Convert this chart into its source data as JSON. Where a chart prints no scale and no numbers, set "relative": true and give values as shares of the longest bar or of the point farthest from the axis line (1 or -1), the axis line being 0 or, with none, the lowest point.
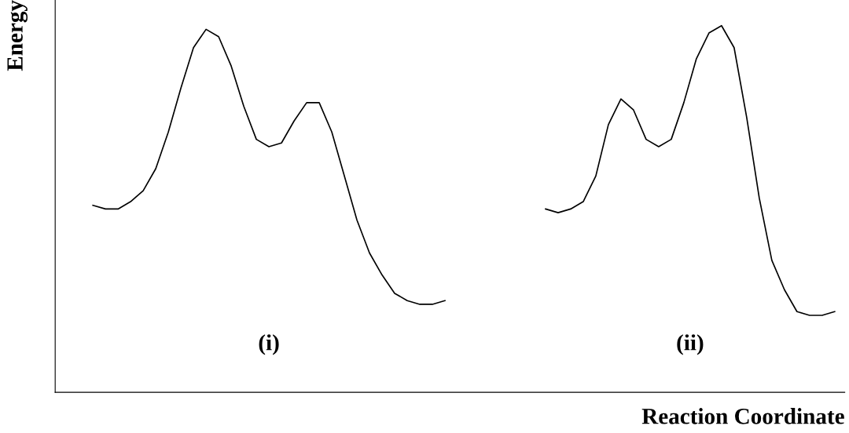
{
  "chart_data": {
    "type": "line",
    "relative": true,
    "xlabel": "Reaction Coordinate",
    "ylabel": "Energy",
    "categories": [
      null,
      null,
      null,
      null,
      null,
      null,
      null,
      null,
      null,
      null,
      null,
      null,
      null,
      null,
      null,
      null,
      null,
      null,
      null,
      null,
      null,
      null,
      null,
      null,
      null,
      null,
      null,
      null,
      null,
      null,
      null,
      null,
      null,
      null,
      null,
      null,
      null,
      null,
      null,
      null,
      null,
      null,
      null,
      null,
      null,
      null,
      null,
      null,
      null,
      null,
      null,
      null,
      null,
      null,
      null,
      null,
      null,
      null,
      null,
      null
    ],
    "series": [
      {
        "color": "#000000",
        "values": [
          0.51,
          0.5,
          0.5,
          0.52,
          0.55,
          0.61,
          0.71,
          0.83,
          0.94,
          0.99,
          0.97,
          0.89,
          0.78,
          0.69,
          0.67,
          0.68,
          0.74,
          0.79,
          0.79,
          0.71,
          0.59,
          0.47,
          0.38,
          0.32,
          0.27,
          0.25,
          0.24,
          0.24,
          0.25,
          null,
          null,
          null,
          null,
          null,
          null,
          null,
          null,
          null,
          null,
          null,
          null,
          null,
          null,
          null,
          null,
          null,
          null,
          null,
          null,
          null,
          null,
          null,
          null,
          null,
          null,
          null,
          null,
          null,
          null,
          null
        ]
      },
      {
        "color": "#000000",
        "values": [
          null,
          null,
          null,
          null,
          null,
          null,
          null,
          null,
          null,
          null,
          null,
          null,
          null,
          null,
          null,
          null,
          null,
          null,
          null,
          null,
          null,
          null,
          null,
          null,
          null,
          null,
          null,
          null,
          null,
          null,
          null,
          null,
          null,
          null,
          null,
          null,
          0.5,
          0.49,
          0.5,
          0.52,
          0.59,
          0.73,
          0.8,
          0.77,
          0.69,
          0.67,
          0.69,
          0.79,
          0.91,
          0.98,
          1.0,
          0.94,
          0.75,
          0.53,
          0.36,
          0.28,
          0.22,
          0.21,
          0.21,
          0.22
        ]
      }
    ],
    "annotations": [
      "(i)",
      "(ii)"
    ],
    "legend": false,
    "grid": false,
    "marker": "none",
    "line_style": "solid"
  }
}
